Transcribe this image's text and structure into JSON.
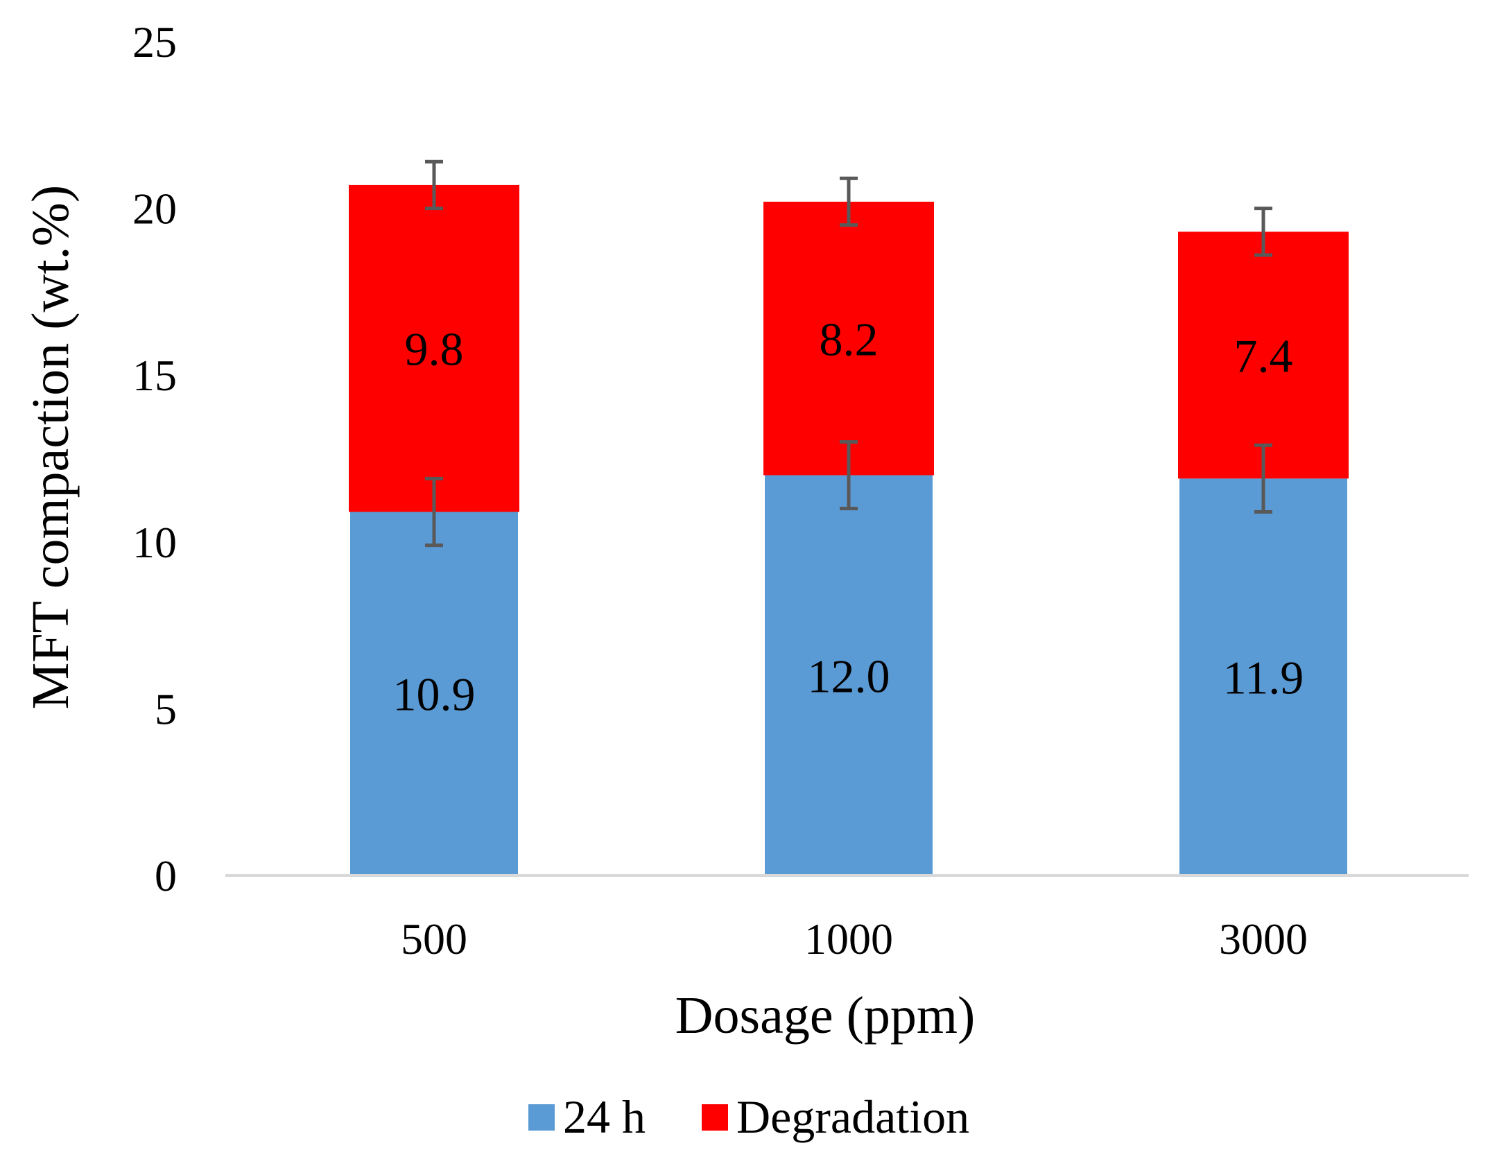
{
  "chart_data": {
    "type": "bar",
    "stacked": true,
    "title": "",
    "xlabel": "Dosage (ppm)",
    "ylabel": "MFT compaction (wt.%)",
    "categories": [
      "500",
      "1000",
      "3000"
    ],
    "ylim": [
      0,
      25
    ],
    "yticks": [
      0,
      5,
      10,
      15,
      20,
      25
    ],
    "grid": false,
    "legend_position": "bottom",
    "series": [
      {
        "name": "24 h",
        "color": "#5b9bd5",
        "values": [
          10.9,
          12.0,
          11.9
        ],
        "labels": [
          "10.9",
          "12.0",
          "11.9"
        ],
        "error": [
          1.0,
          1.0,
          1.0
        ]
      },
      {
        "name": "Degradation",
        "color": "#ff0000",
        "values": [
          9.8,
          8.2,
          7.4
        ],
        "labels": [
          "9.8",
          "8.2",
          "7.4"
        ],
        "error": [
          0.7,
          0.7,
          0.7
        ]
      }
    ],
    "error_bar_color": "#595959",
    "axis_line_color": "#d9d9d9"
  }
}
